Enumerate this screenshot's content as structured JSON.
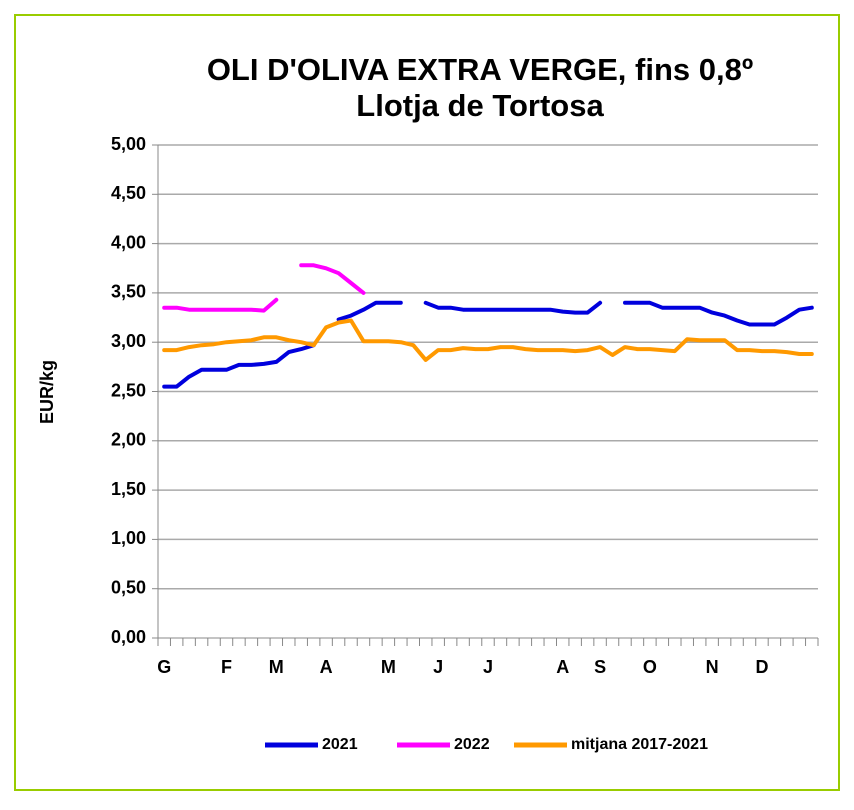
{
  "chart_data": {
    "type": "line",
    "title": [
      "OLI D'OLIVA EXTRA VERGE, fins 0,8º",
      "Llotja de Tortosa"
    ],
    "ylabel": "EUR/kg",
    "categories": [
      "G",
      null,
      null,
      null,
      null,
      "F",
      null,
      null,
      null,
      "M",
      null,
      null,
      null,
      "A",
      null,
      null,
      null,
      null,
      "M",
      null,
      null,
      null,
      "J",
      null,
      null,
      null,
      "J",
      null,
      null,
      null,
      null,
      null,
      "A",
      null,
      null,
      "S",
      null,
      null,
      null,
      "O",
      null,
      null,
      null,
      null,
      "N",
      null,
      null,
      null,
      "D",
      null,
      null,
      null,
      null
    ],
    "series": [
      {
        "name": "2021",
        "color": "#0000dd",
        "values": [
          2.55,
          2.55,
          2.65,
          2.72,
          2.72,
          2.72,
          2.77,
          2.77,
          2.78,
          2.8,
          2.9,
          2.93,
          2.97,
          null,
          3.23,
          3.27,
          3.33,
          3.4,
          3.4,
          3.4,
          null,
          3.4,
          3.35,
          3.35,
          3.33,
          3.33,
          3.33,
          3.33,
          3.33,
          3.33,
          3.33,
          3.33,
          3.31,
          3.3,
          3.3,
          3.4,
          null,
          3.4,
          3.4,
          3.4,
          3.35,
          3.35,
          3.35,
          3.35,
          3.3,
          3.27,
          3.22,
          3.18,
          3.18,
          3.18,
          3.25,
          3.33,
          3.35
        ]
      },
      {
        "name": "2022",
        "color": "#ff00ff",
        "values": [
          3.35,
          3.35,
          3.33,
          3.33,
          3.33,
          3.33,
          3.33,
          3.33,
          3.32,
          3.43,
          null,
          3.78,
          3.78,
          3.75,
          3.7,
          3.6,
          3.5,
          null,
          null,
          null,
          null,
          null,
          null,
          null,
          null,
          null,
          null,
          null,
          null,
          null,
          null,
          null,
          null,
          null,
          null,
          null,
          null,
          null,
          null,
          null,
          null,
          null,
          null,
          null,
          null,
          null,
          null,
          null,
          null,
          null,
          null,
          null,
          null
        ]
      },
      {
        "name": "mitjana 2017-2021",
        "color": "#ff9900",
        "values": [
          2.92,
          2.92,
          2.95,
          2.97,
          2.98,
          3.0,
          3.01,
          3.02,
          3.05,
          3.05,
          3.02,
          3.0,
          2.97,
          3.15,
          3.2,
          3.22,
          3.01,
          3.01,
          3.01,
          3.0,
          2.97,
          2.82,
          2.92,
          2.92,
          2.94,
          2.93,
          2.93,
          2.95,
          2.95,
          2.93,
          2.92,
          2.92,
          2.92,
          2.91,
          2.92,
          2.95,
          2.87,
          2.95,
          2.93,
          2.93,
          2.92,
          2.91,
          3.03,
          3.02,
          3.02,
          3.02,
          2.92,
          2.92,
          2.91,
          2.91,
          2.9,
          2.88,
          2.88
        ]
      }
    ],
    "ylim": [
      0,
      5
    ],
    "yticks": [
      {
        "value": 0,
        "label": "0,00"
      },
      {
        "value": 0.5,
        "label": "0,50"
      },
      {
        "value": 1,
        "label": "1,00"
      },
      {
        "value": 1.5,
        "label": "1,50"
      },
      {
        "value": 2,
        "label": "2,00"
      },
      {
        "value": 2.5,
        "label": "2,50"
      },
      {
        "value": 3,
        "label": "3,00"
      },
      {
        "value": 3.5,
        "label": "3,50"
      },
      {
        "value": 4,
        "label": "4,00"
      },
      {
        "value": 4.5,
        "label": "4,50"
      },
      {
        "value": 5,
        "label": "5,00"
      }
    ],
    "grid": true,
    "legend": "bottom"
  }
}
